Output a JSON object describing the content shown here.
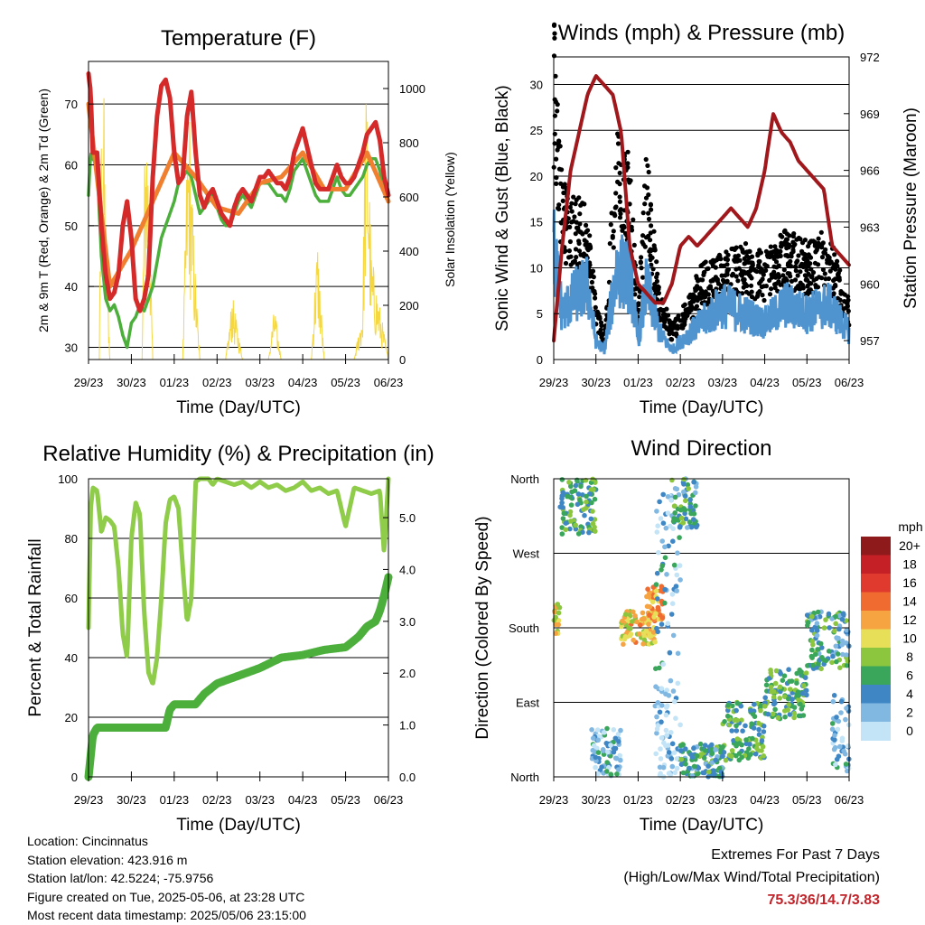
{
  "chart_data": [
    {
      "type": "line",
      "title": "Temperature (F)",
      "xlabel": "Time (Day/UTC)",
      "ylabel": "2m & 9m T (Red, Orange) & 2m Td (Green)",
      "y2label": "Solar Insolation (Yellow)",
      "x_ticks": [
        "29/23",
        "30/23",
        "01/23",
        "02/23",
        "03/23",
        "04/23",
        "05/23",
        "06/23"
      ],
      "x_range_days": [
        0,
        7
      ],
      "y_ticks": [
        30,
        40,
        50,
        60,
        70
      ],
      "ylim": [
        28,
        77
      ],
      "y2_ticks": [
        0,
        200,
        400,
        600,
        800,
        1000
      ],
      "y2lim": [
        0,
        1100
      ],
      "grid": true,
      "colors": {
        "t2m": "#d42a2a",
        "t9m": "#f08030",
        "td": "#4caf3c",
        "solar": "#f5d742"
      },
      "series": [
        {
          "name": "2m T (Red)",
          "x": [
            0,
            0.05,
            0.1,
            0.2,
            0.3,
            0.4,
            0.5,
            0.6,
            0.7,
            0.8,
            0.9,
            1.0,
            1.1,
            1.2,
            1.3,
            1.4,
            1.5,
            1.6,
            1.7,
            1.8,
            1.9,
            2.0,
            2.1,
            2.2,
            2.3,
            2.4,
            2.5,
            2.6,
            2.7,
            2.8,
            2.9,
            3.0,
            3.1,
            3.2,
            3.3,
            3.4,
            3.5,
            3.6,
            3.7,
            3.8,
            3.9,
            4.0,
            4.1,
            4.2,
            4.3,
            4.4,
            4.5,
            4.6,
            4.7,
            4.8,
            4.9,
            5.0,
            5.1,
            5.2,
            5.3,
            5.4,
            5.5,
            5.6,
            5.7,
            5.8,
            5.9,
            6.0,
            6.1,
            6.2,
            6.3,
            6.4,
            6.5,
            6.6,
            6.7,
            6.8,
            6.9,
            7.0
          ],
          "y": [
            75,
            72,
            62,
            62,
            50,
            42,
            38,
            39,
            42,
            50,
            54,
            48,
            38,
            36,
            38,
            42,
            58,
            68,
            73,
            74,
            71,
            62,
            57,
            58,
            68,
            72,
            62,
            55,
            53,
            55,
            56,
            54,
            52,
            51,
            50,
            53,
            55,
            56,
            55,
            54,
            56,
            58,
            58,
            59,
            58,
            57,
            57,
            56,
            58,
            62,
            64,
            66,
            63,
            60,
            57,
            56,
            56,
            56,
            58,
            60,
            58,
            57,
            57,
            58,
            60,
            62,
            65,
            66,
            67,
            64,
            58,
            55
          ]
        },
        {
          "name": "9m T (Orange)",
          "x": [
            0,
            0.5,
            1.0,
            1.5,
            2.0,
            2.5,
            3.0,
            3.5,
            4.0,
            4.5,
            5.0,
            5.5,
            6.0,
            6.5,
            7.0
          ],
          "y": [
            70,
            40,
            46,
            54,
            62,
            58,
            53,
            52,
            57,
            58,
            62,
            56,
            56,
            62,
            54
          ]
        },
        {
          "name": "2m Td (Green)",
          "x": [
            0,
            0.05,
            0.1,
            0.2,
            0.3,
            0.4,
            0.5,
            0.6,
            0.7,
            0.8,
            0.9,
            1.0,
            1.1,
            1.2,
            1.3,
            1.4,
            1.5,
            1.6,
            1.7,
            1.8,
            1.9,
            2.0,
            2.1,
            2.2,
            2.3,
            2.4,
            2.5,
            2.6,
            2.7,
            2.8,
            2.9,
            3.0,
            3.1,
            3.2,
            3.3,
            3.4,
            3.5,
            3.6,
            3.7,
            3.8,
            3.9,
            4.0,
            4.1,
            4.2,
            4.3,
            4.4,
            4.5,
            4.6,
            4.7,
            4.8,
            4.9,
            5.0,
            5.1,
            5.2,
            5.3,
            5.4,
            5.5,
            5.6,
            5.7,
            5.8,
            5.9,
            6.0,
            6.1,
            6.2,
            6.3,
            6.4,
            6.5,
            6.6,
            6.7,
            6.8,
            6.9,
            7.0
          ],
          "y": [
            55,
            62,
            61,
            60,
            45,
            38,
            36,
            37,
            35,
            32,
            30,
            34,
            35,
            37,
            36,
            38,
            40,
            44,
            48,
            50,
            52,
            54,
            57,
            58,
            59,
            58,
            55,
            52,
            53,
            54,
            55,
            53,
            51,
            50,
            50,
            52,
            54,
            55,
            54,
            53,
            55,
            57,
            57,
            57,
            56,
            55,
            55,
            54,
            56,
            59,
            60,
            61,
            59,
            57,
            55,
            54,
            54,
            54,
            56,
            58,
            56,
            55,
            55,
            56,
            57,
            58,
            60,
            61,
            61,
            59,
            56,
            54
          ]
        },
        {
          "name": "Solar Insolation (Yellow)",
          "x": [
            0,
            0.25,
            0.3,
            0.35,
            0.4,
            0.5,
            0.6,
            1.25,
            1.3,
            1.35,
            1.4,
            1.45,
            1.5,
            2.2,
            2.3,
            2.35,
            2.4,
            2.5,
            2.6,
            3.2,
            3.3,
            3.35,
            3.4,
            3.5,
            3.6,
            4.2,
            4.3,
            4.35,
            4.4,
            4.5,
            5.2,
            5.3,
            5.35,
            5.4,
            5.5,
            6.2,
            6.3,
            6.4,
            6.45,
            6.5,
            6.6,
            7.0
          ],
          "y": [
            0,
            0,
            900,
            1080,
            600,
            0,
            0,
            0,
            700,
            1000,
            800,
            400,
            0,
            0,
            800,
            1000,
            700,
            300,
            0,
            0,
            150,
            250,
            200,
            100,
            0,
            0,
            150,
            200,
            120,
            0,
            0,
            350,
            450,
            300,
            0,
            0,
            100,
            200,
            900,
            1050,
            400,
            0
          ]
        }
      ]
    },
    {
      "type": "scatter",
      "title": "Winds (mph) & Pressure (mb)",
      "xlabel": "Time (Day/UTC)",
      "ylabel": "Sonic Wind & Gust (Blue, Black)",
      "y2label": "Station Pressure (Maroon)",
      "x_ticks": [
        "29/23",
        "30/23",
        "01/23",
        "02/23",
        "03/23",
        "04/23",
        "05/23",
        "06/23"
      ],
      "x_range_days": [
        0,
        7
      ],
      "y_ticks": [
        0,
        5,
        10,
        15,
        20,
        25,
        30
      ],
      "ylim": [
        0,
        33
      ],
      "y2_ticks": [
        957,
        960,
        963,
        966,
        969,
        972
      ],
      "y2lim": [
        956,
        972
      ],
      "grid": true,
      "colors": {
        "wind": "#4f93cf",
        "gust": "#000000",
        "pressure": "#a0181c"
      },
      "series": [
        {
          "name": "Sonic Wind (Blue)",
          "x": [
            0,
            0.2,
            0.5,
            0.8,
            1.0,
            1.2,
            1.5,
            1.8,
            2.0,
            2.2,
            2.5,
            2.8,
            3.0,
            3.5,
            4.0,
            4.5,
            5.0,
            5.5,
            6.0,
            6.5,
            7.0
          ],
          "y": [
            12,
            5,
            7,
            8,
            2,
            1,
            10,
            9,
            2,
            8,
            3,
            1,
            2,
            4,
            6,
            5,
            4,
            6,
            5,
            6,
            3
          ]
        },
        {
          "name": "Gust (Black)",
          "x": [
            0,
            0.2,
            0.5,
            0.8,
            1.0,
            1.2,
            1.5,
            1.8,
            2.0,
            2.2,
            2.5,
            2.8,
            3.0,
            3.5,
            4.0,
            4.5,
            5.0,
            5.5,
            6.0,
            6.5,
            7.0
          ],
          "y": [
            30,
            15,
            14,
            13,
            5,
            2,
            20,
            17,
            4,
            18,
            6,
            3,
            4,
            8,
            9,
            10,
            9,
            11,
            10,
            11,
            5
          ]
        },
        {
          "name": "Station Pressure (Maroon)",
          "x": [
            0,
            0.2,
            0.4,
            0.6,
            0.8,
            1.0,
            1.2,
            1.4,
            1.6,
            1.8,
            2.0,
            2.2,
            2.4,
            2.6,
            2.8,
            3.0,
            3.2,
            3.4,
            3.6,
            3.8,
            4.0,
            4.2,
            4.4,
            4.6,
            4.8,
            5.0,
            5.2,
            5.4,
            5.6,
            5.8,
            6.0,
            6.2,
            6.4,
            6.6,
            6.8,
            7.0
          ],
          "y": [
            957,
            962,
            966,
            968,
            970,
            971,
            970.5,
            970,
            968,
            962,
            960,
            959.5,
            959,
            959,
            960,
            962,
            962.5,
            962,
            962.5,
            963,
            963.5,
            964,
            963.5,
            963,
            964,
            966,
            969,
            968,
            967.5,
            966.5,
            966,
            965.5,
            965,
            962,
            961.5,
            961
          ]
        }
      ]
    },
    {
      "type": "line",
      "title": "Relative Humidity (%) & Precipitation (in)",
      "xlabel": "Time (Day/UTC)",
      "ylabel": "Percent & Total Rainfall",
      "x_ticks": [
        "29/23",
        "30/23",
        "01/23",
        "02/23",
        "03/23",
        "04/23",
        "05/23",
        "06/23"
      ],
      "x_range_days": [
        0,
        7
      ],
      "y_ticks": [
        0,
        20,
        40,
        60,
        80,
        100
      ],
      "ylim": [
        0,
        100
      ],
      "y2_ticks": [
        "0.0",
        "1.0",
        "2.0",
        "3.0",
        "4.0",
        "5.0"
      ],
      "y2lim": [
        0,
        5.75
      ],
      "grid": true,
      "colors": {
        "rh": "#8fcc4a",
        "precip": "#4caf3c"
      },
      "series": [
        {
          "name": "Relative Humidity",
          "x": [
            0,
            0.05,
            0.1,
            0.2,
            0.3,
            0.4,
            0.5,
            0.6,
            0.7,
            0.8,
            0.9,
            1.0,
            1.1,
            1.2,
            1.3,
            1.4,
            1.5,
            1.6,
            1.7,
            1.8,
            1.9,
            2.0,
            2.1,
            2.2,
            2.3,
            2.4,
            2.5,
            2.6,
            2.7,
            2.8,
            2.9,
            3.0,
            3.2,
            3.4,
            3.6,
            3.8,
            4.0,
            4.2,
            4.4,
            4.6,
            4.8,
            5.0,
            5.2,
            5.4,
            5.6,
            5.8,
            6.0,
            6.2,
            6.4,
            6.6,
            6.8,
            6.9,
            7.0
          ],
          "y": [
            50,
            90,
            97,
            96,
            82,
            87,
            86,
            84,
            70,
            48,
            40,
            80,
            92,
            88,
            55,
            35,
            31,
            40,
            60,
            85,
            93,
            94,
            90,
            70,
            52,
            60,
            99,
            100,
            100,
            100,
            98,
            100,
            99,
            98,
            99,
            97,
            99,
            97,
            98,
            96,
            97,
            99,
            96,
            97,
            95,
            96,
            84,
            97,
            96,
            95,
            96,
            75,
            100
          ]
        },
        {
          "name": "Total Precipitation",
          "x": [
            0,
            0.05,
            0.1,
            0.2,
            0.5,
            1.0,
            1.5,
            1.8,
            1.9,
            2.0,
            2.5,
            2.7,
            3.0,
            3.5,
            4.0,
            4.5,
            5.0,
            5.5,
            6.0,
            6.3,
            6.5,
            6.7,
            6.8,
            6.9,
            7.0
          ],
          "y": [
            0,
            0.4,
            0.8,
            0.95,
            0.95,
            0.95,
            0.95,
            0.95,
            1.3,
            1.4,
            1.4,
            1.6,
            1.8,
            1.95,
            2.1,
            2.3,
            2.35,
            2.45,
            2.5,
            2.7,
            2.9,
            3.0,
            3.2,
            3.5,
            3.85
          ]
        }
      ]
    },
    {
      "type": "scatter",
      "title": "Wind Direction",
      "xlabel": "Time (Day/UTC)",
      "ylabel": "Direction (Colored By Speed)",
      "x_ticks": [
        "29/23",
        "30/23",
        "01/23",
        "02/23",
        "03/23",
        "04/23",
        "05/23",
        "06/23"
      ],
      "x_range_days": [
        0,
        7
      ],
      "y_ticks": [
        "North",
        "East",
        "South",
        "West",
        "North"
      ],
      "ylim_degrees": [
        0,
        360
      ],
      "grid": true,
      "colorbar": {
        "title": "mph",
        "labels": [
          "20+",
          "18",
          "16",
          "14",
          "12",
          "10",
          "8",
          "6",
          "4",
          "2",
          "0"
        ],
        "colors": [
          "#8e1a1c",
          "#c42026",
          "#e03a2e",
          "#ef6b2f",
          "#f6a341",
          "#e8df58",
          "#8cc63f",
          "#3aa65b",
          "#3f86c4",
          "#80b8e2",
          "#c3e4f6"
        ]
      },
      "clusters": [
        {
          "x_start": 0.0,
          "x_end": 0.15,
          "dir_min": 170,
          "dir_max": 210,
          "speed": 10
        },
        {
          "x_start": 0.15,
          "x_end": 1.0,
          "dir_min": 290,
          "dir_max": 360,
          "speed": 6
        },
        {
          "x_start": 0.9,
          "x_end": 1.6,
          "dir_min": 0,
          "dir_max": 60,
          "speed": 3
        },
        {
          "x_start": 1.6,
          "x_end": 2.4,
          "dir_min": 160,
          "dir_max": 200,
          "speed": 11
        },
        {
          "x_start": 2.2,
          "x_end": 2.6,
          "dir_min": 190,
          "dir_max": 230,
          "speed": 12
        },
        {
          "x_start": 2.4,
          "x_end": 3.0,
          "dir_min": 0,
          "dir_max": 120,
          "speed": 1
        },
        {
          "x_start": 2.4,
          "x_end": 3.0,
          "dir_min": 130,
          "dir_max": 350,
          "speed": 3
        },
        {
          "x_start": 2.8,
          "x_end": 3.4,
          "dir_min": 300,
          "dir_max": 360,
          "speed": 5
        },
        {
          "x_start": 3.0,
          "x_end": 4.0,
          "dir_min": 0,
          "dir_max": 40,
          "speed": 5
        },
        {
          "x_start": 4.0,
          "x_end": 5.0,
          "dir_min": 20,
          "dir_max": 90,
          "speed": 6
        },
        {
          "x_start": 5.0,
          "x_end": 6.0,
          "dir_min": 70,
          "dir_max": 130,
          "speed": 6
        },
        {
          "x_start": 6.0,
          "x_end": 7.0,
          "dir_min": 130,
          "dir_max": 200,
          "speed": 5
        },
        {
          "x_start": 6.6,
          "x_end": 7.0,
          "dir_min": 0,
          "dir_max": 100,
          "speed": 3
        }
      ]
    }
  ],
  "station_info": [
    "Location: Cincinnatus",
    "Station elevation: 423.916 m",
    "Station lat/lon: 42.5224; -75.9756",
    "Figure created on Tue, 2025-05-06, at 23:28 UTC",
    "Most recent data timestamp: 2025/05/06 23:15:00"
  ],
  "extremes": {
    "line1": "Extremes For Past 7 Days",
    "line2": "(High/Low/Max Wind/Total Precipitation)",
    "values": "75.3/36/14.7/3.83"
  }
}
